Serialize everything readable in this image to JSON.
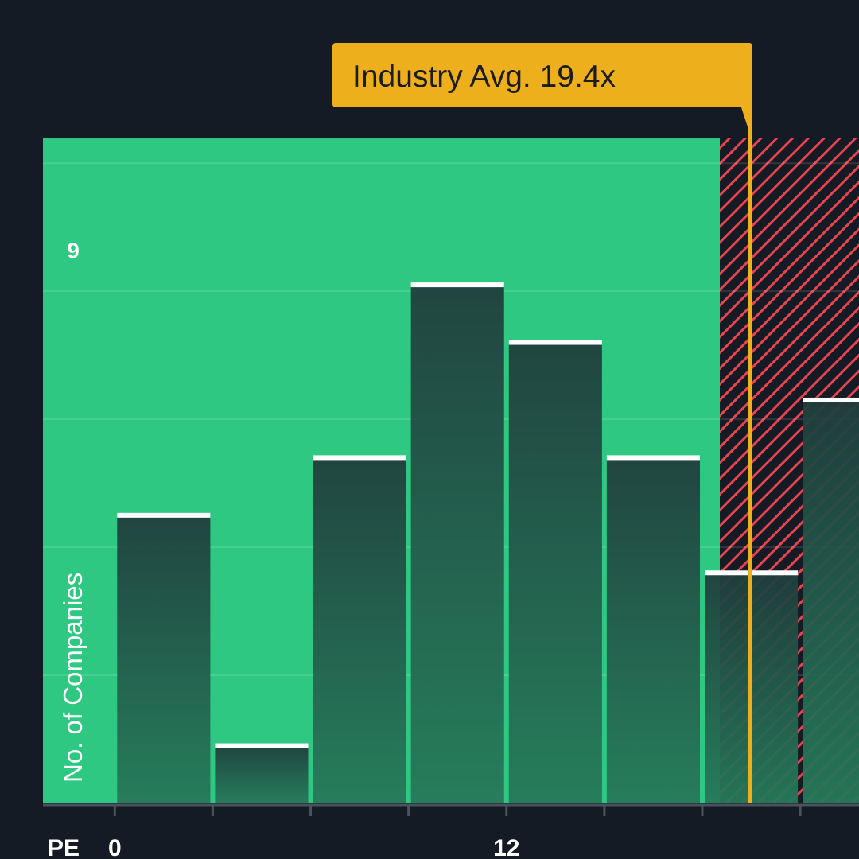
{
  "chart_data": {
    "type": "bar",
    "title": "",
    "xlabel": "PE",
    "ylabel": "No. of Companies",
    "x_tick_labels": [
      {
        "value": 0,
        "label": "0"
      },
      {
        "value": 12,
        "label": "12"
      }
    ],
    "x_ticks": [
      0,
      3,
      6,
      9,
      12,
      15,
      18,
      21
    ],
    "y_tick_labels": [
      {
        "value": 9,
        "label": "9"
      }
    ],
    "y_gridlines": [
      2,
      4,
      6,
      8,
      10
    ],
    "xlim": [
      -2.2,
      22.8
    ],
    "ylim": [
      0,
      10.4
    ],
    "bins": [
      {
        "start": 0,
        "end": 3,
        "count": 4.5
      },
      {
        "start": 3,
        "end": 6,
        "count": 0.9
      },
      {
        "start": 6,
        "end": 9,
        "count": 5.4
      },
      {
        "start": 9,
        "end": 12,
        "count": 8.1
      },
      {
        "start": 12,
        "end": 15,
        "count": 7.2
      },
      {
        "start": 15,
        "end": 18,
        "count": 5.4
      },
      {
        "start": 18,
        "end": 21,
        "count": 3.6
      },
      {
        "start": 21,
        "end": 24,
        "count": 6.3
      }
    ],
    "industry_average": {
      "value": 19.4,
      "label": "Industry Avg. 19.4x"
    },
    "zones": {
      "below_average_color": "#2fc882",
      "above_average_color": "#e8434f"
    },
    "colors": {
      "background": "#151b24",
      "bar_top": "#203e3c",
      "bar_bottom": "#26795a",
      "bar_cap": "#ffffff",
      "marker": "#edb01c",
      "axis": "#4a525d",
      "label_text": "#ffffff",
      "marker_text": "#1c1c1c"
    }
  }
}
